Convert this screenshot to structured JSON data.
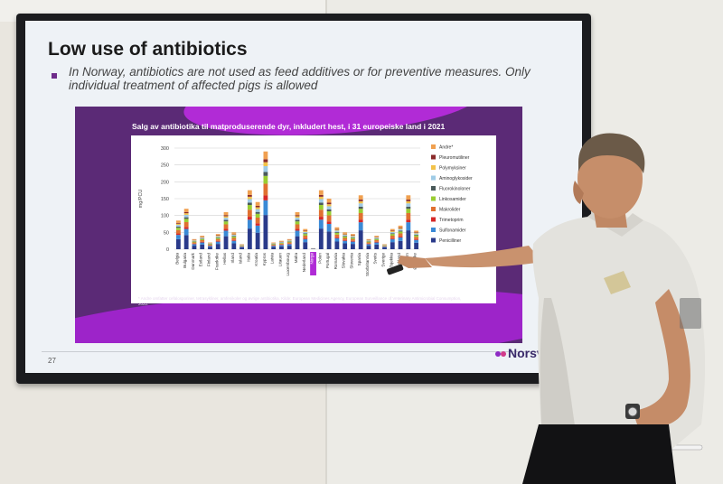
{
  "slide": {
    "title": "Low use of antibiotics",
    "bullet": "In Norway, antibiotics are not used as feed additives or for preventive measures. Only individual treatment of affected pigs is allowed",
    "page_number": "27",
    "logo_text": "Norsv"
  },
  "chart_data": {
    "type": "bar",
    "title": "Salg av antibiotika til matproduserende dyr, inkludert hest, i 31 europeiske land i 2021",
    "ylabel": "mg/PCU",
    "ylim": [
      0,
      300
    ],
    "yticks": [
      0,
      50,
      100,
      150,
      200,
      250,
      300
    ],
    "categories": [
      "Belgia",
      "Bulgaria",
      "Danmark",
      "Estland",
      "Finland",
      "Frankrike",
      "Hellas",
      "Irland",
      "Island",
      "Italia",
      "Kroatia",
      "Kypros",
      "Latvia",
      "Litauen",
      "Luxembourg",
      "Malta",
      "Nederland",
      "Norge",
      "Polen",
      "Portugal",
      "Romania",
      "Slovakia",
      "Slovenia",
      "Spania",
      "Storbritannia",
      "Sveits",
      "Sverige",
      "Tsjekkia",
      "Tyskland",
      "Ungarn",
      "Østerrike"
    ],
    "highlight": "Norge",
    "series_order": [
      "Andre*",
      "Pleuromutiliner",
      "Polymyksiner",
      "Aminoglykosider",
      "Fluorokinoloner",
      "Linkosamider",
      "Makrolider",
      "Trimetoprim",
      "Sulfonamider",
      "Penicilliner"
    ],
    "colors": [
      "#f0a050",
      "#8a2a2a",
      "#f2c24a",
      "#9fcbe6",
      "#4a5a5a",
      "#9acd32",
      "#e07030",
      "#d62828",
      "#3a8ad6",
      "#2a3a8a"
    ],
    "legend": [
      "Andre*",
      "Pleuromutiliner",
      "Polymyksiner",
      "Aminoglykosider",
      "Fluorokinoloner",
      "Linkosamider",
      "Makrolider",
      "Trimetoprim",
      "Sulfonamider",
      "Penicilliner"
    ],
    "totals": [
      85,
      120,
      30,
      40,
      20,
      45,
      110,
      50,
      15,
      175,
      140,
      290,
      20,
      25,
      30,
      110,
      60,
      3,
      175,
      150,
      65,
      50,
      45,
      160,
      30,
      40,
      15,
      60,
      70,
      160,
      55
    ],
    "footnote": "* Andre omfatter cefalosporiner, tetrasykliner, amfenikoler og øvrige antibiotika. Kilde: European Medicines Agency, European Surveillance of Veterinary Antimicrobial Consumption, 2022."
  }
}
